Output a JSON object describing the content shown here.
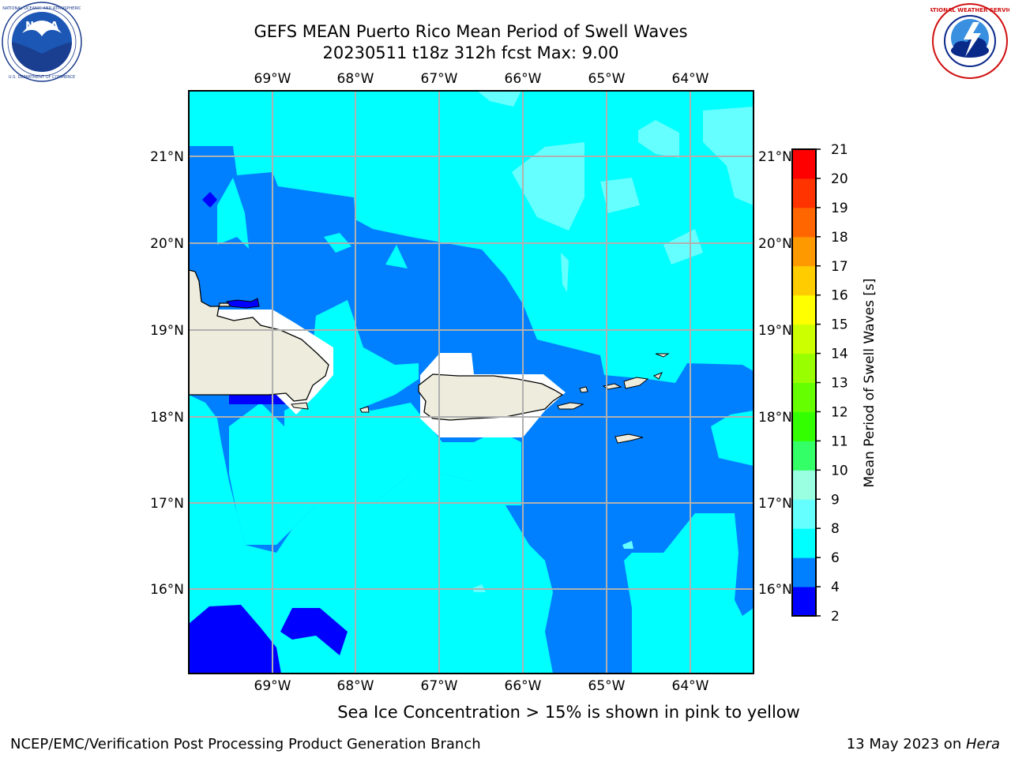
{
  "header": {
    "title_line1": "GEFS MEAN Puerto Rico Mean Period of Swell Waves",
    "title_line2": "20230511 t18z 312h fcst   Max: 9.00"
  },
  "logos": {
    "left_name": "NOAA",
    "right_name": "NATIONAL WEATHER SERVICE"
  },
  "map": {
    "lon_labels": [
      "69°W",
      "68°W",
      "67°W",
      "66°W",
      "65°W",
      "64°W"
    ],
    "lat_labels": [
      "21°N",
      "20°N",
      "19°N",
      "18°N",
      "17°N",
      "16°N"
    ],
    "extent": {
      "lon": [
        -69.99,
        -63.25
      ],
      "lat": [
        15.0,
        21.75
      ]
    },
    "grid": true,
    "land_color": "#eeecdc"
  },
  "colorbar": {
    "label": "Mean Period of Swell Waves [s]",
    "ticks": [
      "2",
      "4",
      "6",
      "8",
      "9",
      "10",
      "11",
      "12",
      "13",
      "14",
      "15",
      "16",
      "17",
      "18",
      "19",
      "20",
      "21"
    ],
    "colors": [
      "#0000ff",
      "#0080ff",
      "#00ffff",
      "#66ffff",
      "#99ffe0",
      "#33ff66",
      "#33ff00",
      "#66ff00",
      "#99ff00",
      "#ccff00",
      "#ffff00",
      "#ffcc00",
      "#ff9900",
      "#ff6600",
      "#ff3300",
      "#ff0000"
    ]
  },
  "caption": "Sea Ice Concentration > 15% is shown in pink to yellow",
  "footer": {
    "left": "NCEP/EMC/Verification Post Processing Product Generation Branch",
    "right_date": "13 May 2023 on ",
    "right_host": "Hera"
  }
}
